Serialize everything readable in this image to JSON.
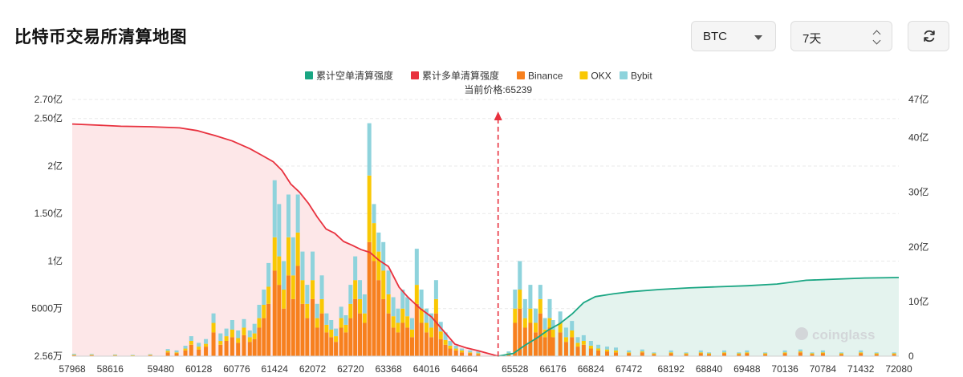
{
  "header": {
    "title": "比特币交易所清算地图",
    "symbol_value": "BTC",
    "period_value": "7天"
  },
  "chart_data": {
    "type": "bar",
    "title": "",
    "current_price_label": "当前价格:65239",
    "current_price": 65239,
    "legend": [
      {
        "name": "累计空单清算强度",
        "color": "#1aa683"
      },
      {
        "name": "累计多单清算强度",
        "color": "#e8313e"
      },
      {
        "name": "Binance",
        "color": "#f7801e"
      },
      {
        "name": "OKX",
        "color": "#f9c804"
      },
      {
        "name": "Bybit",
        "color": "#8ed3dc"
      }
    ],
    "x_ticks": [
      "57968",
      "58616",
      "59480",
      "60128",
      "60776",
      "61424",
      "62072",
      "62720",
      "63368",
      "64016",
      "64664",
      "65528",
      "66176",
      "66824",
      "67472",
      "68192",
      "68840",
      "69488",
      "70136",
      "70784",
      "71432",
      "72080"
    ],
    "xlim": [
      57968,
      72080
    ],
    "left_axis_ticks": [
      {
        "label": "2.56万",
        "value": 0.000256
      },
      {
        "label": "5000万",
        "value": 0.5
      },
      {
        "label": "1亿",
        "value": 1.0
      },
      {
        "label": "1.50亿",
        "value": 1.5
      },
      {
        "label": "2亿",
        "value": 2.0
      },
      {
        "label": "2.50亿",
        "value": 2.5
      },
      {
        "label": "2.70亿",
        "value": 2.7
      }
    ],
    "right_axis_ticks": [
      {
        "label": "0",
        "value": 0
      },
      {
        "label": "10亿",
        "value": 10
      },
      {
        "label": "20亿",
        "value": 20
      },
      {
        "label": "30亿",
        "value": 30
      },
      {
        "label": "40亿",
        "value": 40
      },
      {
        "label": "47亿",
        "value": 47
      }
    ],
    "ylim_left": [
      0,
      2.7
    ],
    "ylim_right": [
      0,
      47
    ],
    "units_left": "亿",
    "units_right": "亿",
    "cumulative_long": {
      "name": "累计多单清算强度",
      "x": [
        57968,
        58400,
        58800,
        59300,
        59800,
        60100,
        60400,
        60700,
        61000,
        61200,
        61400,
        61550,
        61700,
        61850,
        62000,
        62150,
        62300,
        62450,
        62600,
        62750,
        62900,
        63050,
        63200,
        63368,
        63550,
        63700,
        63900,
        64100,
        64300,
        64500,
        64700,
        64900,
        65100,
        65239
      ],
      "y": [
        42.5,
        42.3,
        42.1,
        42.0,
        41.8,
        41.3,
        40.4,
        39.4,
        38.0,
        36.8,
        35.6,
        34.0,
        31.5,
        30.0,
        28.0,
        25.5,
        23.3,
        22.5,
        21.0,
        20.3,
        19.5,
        19.0,
        17.6,
        16.4,
        12.6,
        10.8,
        8.8,
        7.2,
        4.7,
        2.2,
        1.5,
        1.0,
        0.4,
        0.0
      ]
    },
    "cumulative_short": {
      "name": "累计空单清算强度",
      "x": [
        65239,
        65500,
        65700,
        65900,
        66100,
        66300,
        66500,
        66700,
        66900,
        67200,
        67500,
        68000,
        68500,
        69000,
        69500,
        70000,
        70500,
        71000,
        71500,
        72080
      ],
      "y": [
        0.0,
        0.5,
        2.0,
        3.3,
        4.8,
        6.0,
        7.7,
        9.8,
        10.9,
        11.4,
        11.8,
        12.2,
        12.5,
        12.7,
        12.9,
        13.2,
        13.9,
        14.1,
        14.3,
        14.4
      ]
    },
    "bars_series": [
      "Binance",
      "OKX",
      "Bybit"
    ],
    "bars": [
      {
        "x": 58000,
        "v": [
          0.01,
          0.005,
          0.01
        ]
      },
      {
        "x": 58300,
        "v": [
          0.01,
          0.005,
          0.008
        ]
      },
      {
        "x": 58700,
        "v": [
          0.008,
          0.004,
          0.006
        ]
      },
      {
        "x": 59000,
        "v": [
          0.006,
          0.003,
          0.005
        ]
      },
      {
        "x": 59300,
        "v": [
          0.01,
          0.005,
          0.006
        ]
      },
      {
        "x": 59600,
        "v": [
          0.04,
          0.015,
          0.02
        ]
      },
      {
        "x": 59750,
        "v": [
          0.03,
          0.01,
          0.02
        ]
      },
      {
        "x": 59900,
        "v": [
          0.06,
          0.02,
          0.03
        ]
      },
      {
        "x": 60000,
        "v": [
          0.12,
          0.04,
          0.05
        ]
      },
      {
        "x": 60128,
        "v": [
          0.07,
          0.03,
          0.04
        ]
      },
      {
        "x": 60250,
        "v": [
          0.1,
          0.03,
          0.05
        ]
      },
      {
        "x": 60380,
        "v": [
          0.25,
          0.1,
          0.1
        ]
      },
      {
        "x": 60500,
        "v": [
          0.12,
          0.04,
          0.08
        ]
      },
      {
        "x": 60600,
        "v": [
          0.16,
          0.05,
          0.08
        ]
      },
      {
        "x": 60700,
        "v": [
          0.2,
          0.08,
          0.1
        ]
      },
      {
        "x": 60800,
        "v": [
          0.14,
          0.05,
          0.08
        ]
      },
      {
        "x": 60900,
        "v": [
          0.22,
          0.08,
          0.09
        ]
      },
      {
        "x": 61000,
        "v": [
          0.15,
          0.05,
          0.07
        ]
      },
      {
        "x": 61080,
        "v": [
          0.18,
          0.06,
          0.1
        ]
      },
      {
        "x": 61160,
        "v": [
          0.3,
          0.1,
          0.14
        ]
      },
      {
        "x": 61240,
        "v": [
          0.4,
          0.14,
          0.16
        ]
      },
      {
        "x": 61320,
        "v": [
          0.55,
          0.18,
          0.25
        ]
      },
      {
        "x": 61424,
        "v": [
          0.9,
          0.35,
          0.6
        ]
      },
      {
        "x": 61500,
        "v": [
          0.75,
          0.3,
          0.55
        ]
      },
      {
        "x": 61580,
        "v": [
          0.5,
          0.2,
          0.3
        ]
      },
      {
        "x": 61660,
        "v": [
          0.85,
          0.4,
          0.45
        ]
      },
      {
        "x": 61740,
        "v": [
          0.6,
          0.25,
          0.4
        ]
      },
      {
        "x": 61820,
        "v": [
          0.95,
          0.35,
          0.4
        ]
      },
      {
        "x": 61900,
        "v": [
          0.55,
          0.25,
          0.3
        ]
      },
      {
        "x": 61980,
        "v": [
          0.4,
          0.15,
          0.2
        ]
      },
      {
        "x": 62072,
        "v": [
          0.6,
          0.2,
          0.3
        ]
      },
      {
        "x": 62150,
        "v": [
          0.3,
          0.1,
          0.15
        ]
      },
      {
        "x": 62230,
        "v": [
          0.45,
          0.15,
          0.25
        ]
      },
      {
        "x": 62310,
        "v": [
          0.25,
          0.08,
          0.12
        ]
      },
      {
        "x": 62390,
        "v": [
          0.2,
          0.08,
          0.1
        ]
      },
      {
        "x": 62470,
        "v": [
          0.15,
          0.06,
          0.08
        ]
      },
      {
        "x": 62560,
        "v": [
          0.3,
          0.1,
          0.12
        ]
      },
      {
        "x": 62640,
        "v": [
          0.25,
          0.08,
          0.1
        ]
      },
      {
        "x": 62720,
        "v": [
          0.4,
          0.15,
          0.2
        ]
      },
      {
        "x": 62800,
        "v": [
          0.6,
          0.2,
          0.25
        ]
      },
      {
        "x": 62880,
        "v": [
          0.45,
          0.15,
          0.2
        ]
      },
      {
        "x": 62960,
        "v": [
          0.35,
          0.1,
          0.2
        ]
      },
      {
        "x": 63040,
        "v": [
          1.2,
          0.7,
          0.55
        ]
      },
      {
        "x": 63120,
        "v": [
          1.0,
          0.4,
          0.2
        ]
      },
      {
        "x": 63200,
        "v": [
          0.8,
          0.3,
          0.2
        ]
      },
      {
        "x": 63280,
        "v": [
          0.6,
          0.3,
          0.3
        ]
      },
      {
        "x": 63368,
        "v": [
          0.45,
          0.2,
          0.25
        ]
      },
      {
        "x": 63450,
        "v": [
          0.3,
          0.12,
          0.2
        ]
      },
      {
        "x": 63530,
        "v": [
          0.25,
          0.1,
          0.15
        ]
      },
      {
        "x": 63610,
        "v": [
          0.35,
          0.15,
          0.2
        ]
      },
      {
        "x": 63690,
        "v": [
          0.3,
          0.12,
          0.2
        ]
      },
      {
        "x": 63770,
        "v": [
          0.2,
          0.08,
          0.12
        ]
      },
      {
        "x": 63850,
        "v": [
          0.55,
          0.2,
          0.38
        ]
      },
      {
        "x": 63930,
        "v": [
          0.35,
          0.15,
          0.2
        ]
      },
      {
        "x": 64016,
        "v": [
          0.25,
          0.1,
          0.15
        ]
      },
      {
        "x": 64100,
        "v": [
          0.2,
          0.1,
          0.15
        ]
      },
      {
        "x": 64180,
        "v": [
          0.45,
          0.15,
          0.2
        ]
      },
      {
        "x": 64260,
        "v": [
          0.18,
          0.08,
          0.1
        ]
      },
      {
        "x": 64340,
        "v": [
          0.12,
          0.05,
          0.08
        ]
      },
      {
        "x": 64420,
        "v": [
          0.08,
          0.03,
          0.05
        ]
      },
      {
        "x": 64520,
        "v": [
          0.06,
          0.02,
          0.03
        ]
      },
      {
        "x": 64620,
        "v": [
          0.04,
          0.02,
          0.02
        ]
      },
      {
        "x": 64760,
        "v": [
          0.03,
          0.01,
          0.02
        ]
      },
      {
        "x": 64900,
        "v": [
          0.02,
          0.01,
          0.02
        ]
      },
      {
        "x": 65420,
        "v": [
          0.02,
          0.01,
          0.02
        ]
      },
      {
        "x": 65528,
        "v": [
          0.35,
          0.15,
          0.2
        ]
      },
      {
        "x": 65610,
        "v": [
          0.5,
          0.2,
          0.3
        ]
      },
      {
        "x": 65700,
        "v": [
          0.3,
          0.1,
          0.2
        ]
      },
      {
        "x": 65790,
        "v": [
          0.35,
          0.15,
          0.25
        ]
      },
      {
        "x": 65880,
        "v": [
          0.25,
          0.1,
          0.15
        ]
      },
      {
        "x": 65960,
        "v": [
          0.45,
          0.15,
          0.15
        ]
      },
      {
        "x": 66040,
        "v": [
          0.2,
          0.08,
          0.12
        ]
      },
      {
        "x": 66120,
        "v": [
          0.3,
          0.1,
          0.2
        ]
      },
      {
        "x": 66176,
        "v": [
          0.2,
          0.08,
          0.1
        ]
      },
      {
        "x": 66300,
        "v": [
          0.25,
          0.1,
          0.12
        ]
      },
      {
        "x": 66400,
        "v": [
          0.15,
          0.05,
          0.1
        ]
      },
      {
        "x": 66500,
        "v": [
          0.2,
          0.07,
          0.1
        ]
      },
      {
        "x": 66600,
        "v": [
          0.1,
          0.04,
          0.06
        ]
      },
      {
        "x": 66700,
        "v": [
          0.12,
          0.04,
          0.06
        ]
      },
      {
        "x": 66824,
        "v": [
          0.08,
          0.03,
          0.05
        ]
      },
      {
        "x": 66950,
        "v": [
          0.06,
          0.02,
          0.04
        ]
      },
      {
        "x": 67100,
        "v": [
          0.05,
          0.02,
          0.03
        ]
      },
      {
        "x": 67250,
        "v": [
          0.04,
          0.02,
          0.03
        ]
      },
      {
        "x": 67472,
        "v": [
          0.03,
          0.01,
          0.02
        ]
      },
      {
        "x": 67700,
        "v": [
          0.04,
          0.01,
          0.02
        ]
      },
      {
        "x": 67900,
        "v": [
          0.02,
          0.01,
          0.01
        ]
      },
      {
        "x": 68192,
        "v": [
          0.03,
          0.01,
          0.02
        ]
      },
      {
        "x": 68450,
        "v": [
          0.02,
          0.01,
          0.01
        ]
      },
      {
        "x": 68700,
        "v": [
          0.03,
          0.01,
          0.02
        ]
      },
      {
        "x": 68840,
        "v": [
          0.02,
          0.01,
          0.01
        ]
      },
      {
        "x": 69100,
        "v": [
          0.03,
          0.01,
          0.02
        ]
      },
      {
        "x": 69350,
        "v": [
          0.02,
          0.01,
          0.01
        ]
      },
      {
        "x": 69488,
        "v": [
          0.03,
          0.01,
          0.02
        ]
      },
      {
        "x": 69800,
        "v": [
          0.02,
          0.01,
          0.01
        ]
      },
      {
        "x": 70136,
        "v": [
          0.03,
          0.01,
          0.02
        ]
      },
      {
        "x": 70400,
        "v": [
          0.04,
          0.01,
          0.02
        ]
      },
      {
        "x": 70600,
        "v": [
          0.02,
          0.01,
          0.01
        ]
      },
      {
        "x": 70784,
        "v": [
          0.03,
          0.01,
          0.02
        ]
      },
      {
        "x": 71100,
        "v": [
          0.02,
          0.01,
          0.01
        ]
      },
      {
        "x": 71432,
        "v": [
          0.03,
          0.01,
          0.02
        ]
      },
      {
        "x": 71700,
        "v": [
          0.02,
          0.01,
          0.01
        ]
      },
      {
        "x": 72000,
        "v": [
          0.02,
          0.01,
          0.01
        ]
      }
    ],
    "watermark_text": "coinglass",
    "grid": true,
    "legend_position": "top-center"
  },
  "colors": {
    "short_line": "#1aa683",
    "short_fill": "#e4f3ee",
    "long_line": "#e8313e",
    "long_fill": "#fde7e8",
    "binance": "#f7801e",
    "okx": "#f9c804",
    "bybit": "#8ed3dc",
    "marker": "#e8313e"
  },
  "icons": {
    "symbol_dropdown": "caret-down-icon",
    "period_dropdown": "updown-chevron-icon",
    "refresh": "refresh-icon",
    "watermark": "coinglass-logo-icon"
  }
}
